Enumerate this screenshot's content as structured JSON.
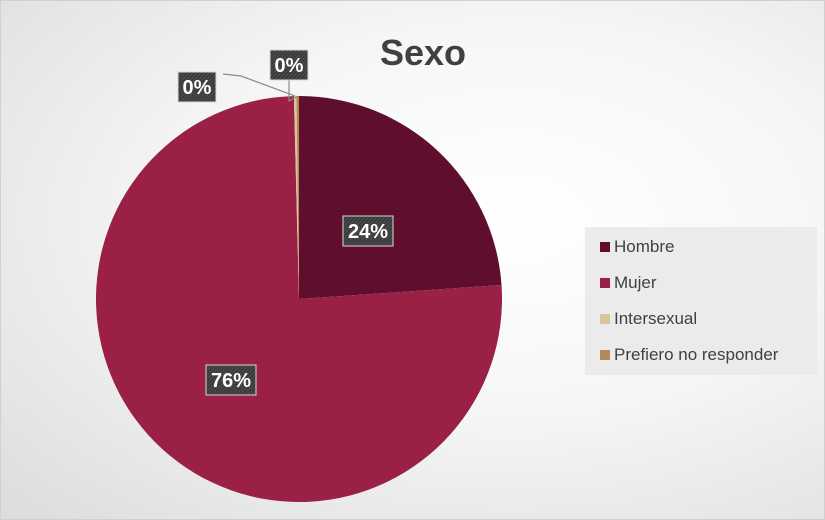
{
  "chart_data": {
    "type": "pie",
    "title": "Sexo",
    "categories": [
      "Hombre",
      "Mujer",
      "Intersexual",
      "Prefiero no responder"
    ],
    "values": [
      24,
      76,
      0.2,
      0.2
    ],
    "data_labels": [
      "24%",
      "76%",
      "0%",
      "0%"
    ],
    "colors": [
      "#5f0f2d",
      "#9a2046",
      "#dcc49a",
      "#b08a5a"
    ],
    "legend_position": "right",
    "start_angle": "12 o'clock",
    "direction": "clockwise"
  }
}
